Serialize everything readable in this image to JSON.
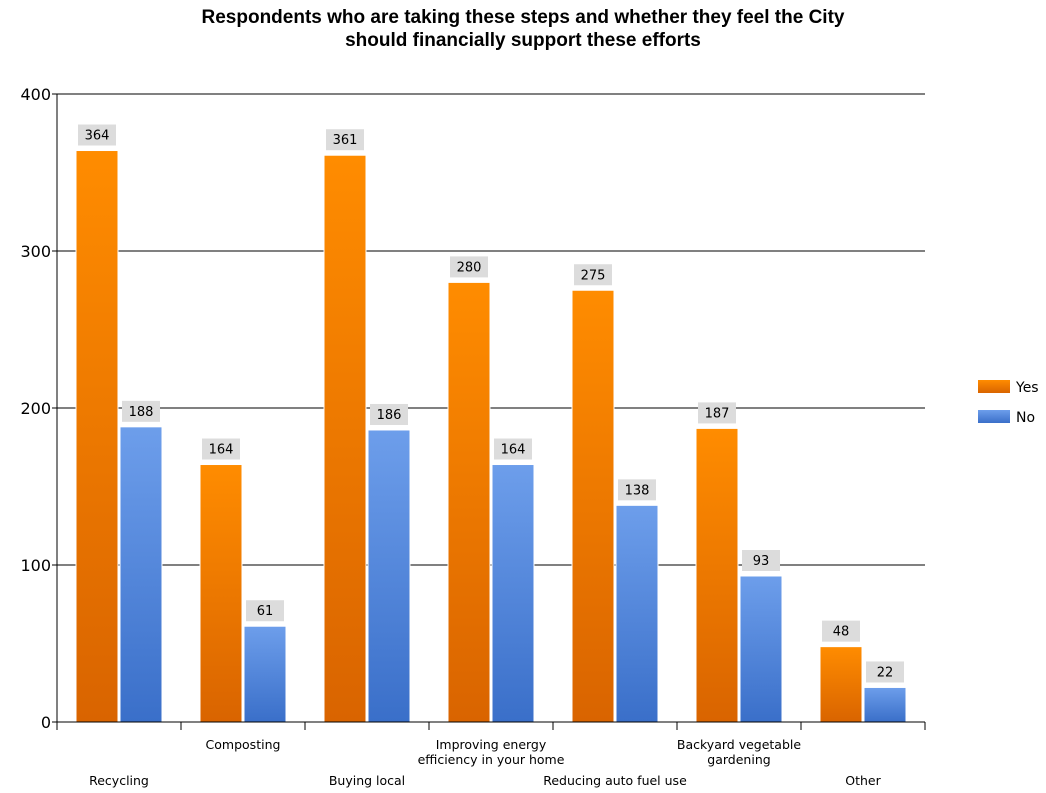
{
  "chart_data": {
    "type": "bar",
    "title_lines": [
      "Respondents who are taking these steps and whether they feel the City",
      "should financially support these efforts"
    ],
    "categories": [
      [
        "Recycling"
      ],
      [
        "Composting"
      ],
      [
        "Buying local"
      ],
      [
        "Improving energy",
        "efficiency in your home"
      ],
      [
        "Reducing auto fuel use"
      ],
      [
        "Backyard vegetable",
        "gardening"
      ],
      [
        "Other"
      ]
    ],
    "series": [
      {
        "name": "Yes",
        "values": [
          364,
          164,
          361,
          280,
          275,
          187,
          48
        ],
        "color_top": "#ff8c00",
        "color_bottom": "#d96400"
      },
      {
        "name": "No",
        "values": [
          188,
          61,
          186,
          164,
          138,
          93,
          22
        ],
        "color_top": "#6d9eeb",
        "color_bottom": "#3a6fc9"
      }
    ],
    "ylim": [
      0,
      400
    ],
    "yticks": [
      0,
      100,
      200,
      300,
      400
    ],
    "grid": true,
    "legend": "right"
  }
}
